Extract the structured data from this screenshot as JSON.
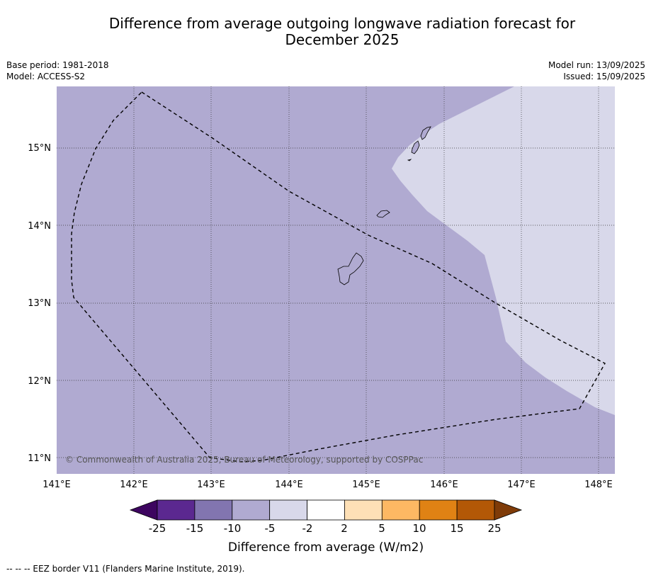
{
  "title": {
    "line1": "Difference from average outgoing longwave radiation forecast for",
    "line2": "December 2025"
  },
  "meta_left": {
    "base_period": "Base period: 1981-2018",
    "model": "Model: ACCESS-S2"
  },
  "meta_right": {
    "model_run": "Model run: 13/09/2025",
    "issued": "Issued: 15/09/2025"
  },
  "map": {
    "lat_labels": [
      "15°N",
      "14°N",
      "13°N",
      "12°N",
      "11°N"
    ],
    "lon_labels": [
      "141°E",
      "142°E",
      "143°E",
      "144°E",
      "145°E",
      "146°E",
      "147°E",
      "148°E"
    ],
    "copyright": "© Commonwealth of Australia 2025, Bureau of Meteorology, supported by COSPPac",
    "fill_colors": {
      "minus10_to_minus5": "#b0aad1",
      "minus5_to_minus2": "#d8d8ea"
    }
  },
  "colorbar": {
    "ticks": [
      "-25",
      "-15",
      "-10",
      "-5",
      "-2",
      "2",
      "5",
      "10",
      "15",
      "25"
    ],
    "colors": [
      "#3d0560",
      "#5b2890",
      "#8275b0",
      "#b0aad1",
      "#d8d8ea",
      "#ffffff",
      "#fee0b6",
      "#fdb863",
      "#e08214",
      "#b35806",
      "#7f3b08"
    ],
    "label": "Difference from average (W/m2)"
  },
  "footnote": "--  --  -- EEZ border V11 (Flanders Marine Institute, 2019)."
}
